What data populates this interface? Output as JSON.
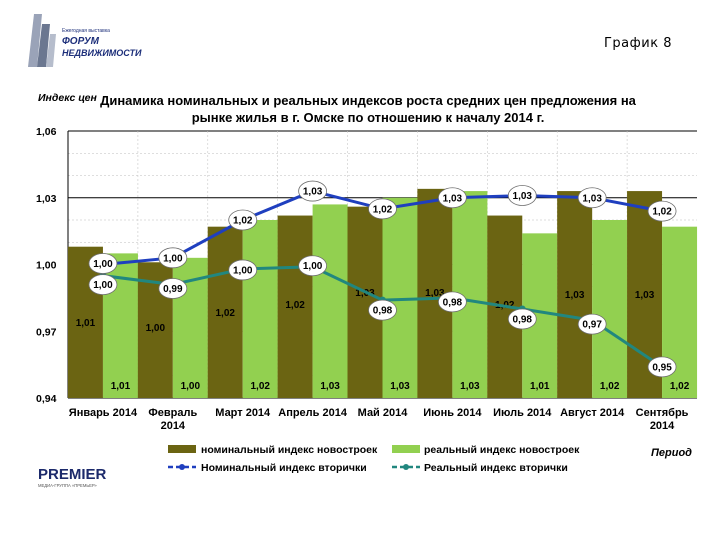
{
  "header": {
    "logo_small_text": "Ежегодная выставка",
    "logo_text_1": "ФОРУМ",
    "logo_text_2": "НЕДВИЖИМОСТИ",
    "graph_number": "График 8"
  },
  "footer_logo": {
    "brand": "PREMIER",
    "tagline": "МЕДИА-ГРУППА «ПРЕМЬЕР»"
  },
  "colors": {
    "nominal_new": "#6b6412",
    "real_new": "#92d050",
    "nominal_secondary": "#1f3fbf",
    "real_secondary": "#21877f"
  },
  "chart_data": {
    "type": "bar",
    "title_line1": "Динамика номинальных и реальных индексов роста средних цен предложения на",
    "title_line2": "рынке жилья в г. Омске по отношению к началу 2014 г.",
    "ylabel": "Индекс цен",
    "xlabel": "Период",
    "ylim": [
      0.94,
      1.06
    ],
    "yticks": [
      "1,06",
      "1,03",
      "1,00",
      "0,97",
      "0,94"
    ],
    "ytick_values": [
      1.06,
      1.03,
      1.0,
      0.97,
      0.94
    ],
    "categories": [
      [
        "Январь 2014"
      ],
      [
        "Февраль",
        "2014"
      ],
      [
        "Март 2014"
      ],
      [
        "Апрель 2014"
      ],
      [
        "Май 2014"
      ],
      [
        "Июнь 2014"
      ],
      [
        "Июль 2014"
      ],
      [
        "Август 2014"
      ],
      [
        "Сентябрь",
        "2014"
      ]
    ],
    "series": [
      {
        "name": "номинальный индекс новостроек",
        "kind": "bar",
        "values": [
          1.008,
          1.001,
          1.017,
          1.022,
          1.026,
          1.034,
          1.022,
          1.033,
          1.033
        ],
        "labels": [
          "1,01",
          "1,00",
          "1,02",
          "1,02",
          "1,03",
          "1,03",
          "1,02",
          "1,03",
          "1,03"
        ]
      },
      {
        "name": "реальный индекс новостроек",
        "kind": "bar",
        "values": [
          1.005,
          1.003,
          1.02,
          1.027,
          1.03,
          1.033,
          1.014,
          1.02,
          1.017
        ],
        "labels": [
          "1,01",
          "1,00",
          "1,02",
          "1,03",
          "1,03",
          "1,03",
          "1,01",
          "1,02",
          "1,02"
        ]
      },
      {
        "name": "Номинальный индекс вторички",
        "kind": "line",
        "values": [
          1.0,
          1.003,
          1.02,
          1.033,
          1.025,
          1.03,
          1.031,
          1.03,
          1.024
        ],
        "labels": [
          "1,00",
          "1,00",
          "1,02",
          "1,03",
          "1,02",
          "1,03",
          "1,03",
          "1,03",
          "1,02"
        ]
      },
      {
        "name": "Реальный индекс вторички",
        "kind": "line",
        "values": [
          0.995,
          0.991,
          0.998,
          0.999,
          0.984,
          0.985,
          0.98,
          0.975,
          0.954
        ],
        "labels": [
          "1,00",
          "0,99",
          "1,00",
          "1,00",
          "0,98",
          "0,98",
          "0,98",
          "0,97",
          "0,95"
        ]
      }
    ]
  }
}
